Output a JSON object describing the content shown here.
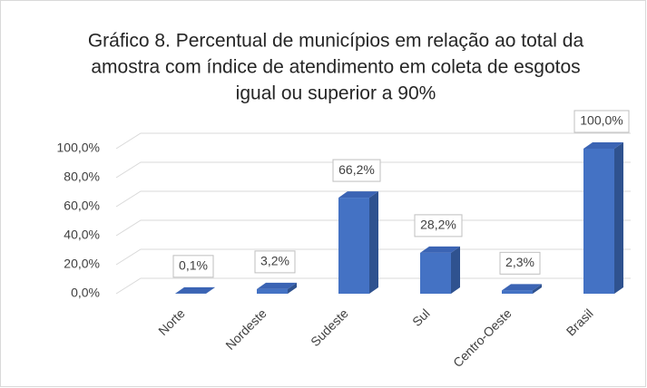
{
  "chart_data": {
    "type": "bar3d",
    "title": [
      "Gráfico 8. Percentual de municípios em relação ao total da",
      "amostra com índice de atendimento em coleta de esgotos",
      "igual ou superior a 90%"
    ],
    "categories": [
      "Norte",
      "Nordeste",
      "Sudeste",
      "Sul",
      "Centro-Oeste",
      "Brasil"
    ],
    "values": [
      0.1,
      3.2,
      66.2,
      28.2,
      2.3,
      100.0
    ],
    "value_labels": [
      "0,1%",
      "3,2%",
      "66,2%",
      "28,2%",
      "2,3%",
      "100,0%"
    ],
    "color": "#4472c4",
    "ylim": [
      0,
      100
    ],
    "yticks": [
      {
        "value": 0,
        "label": "0,0%"
      },
      {
        "value": 20,
        "label": "20,0%"
      },
      {
        "value": 40,
        "label": "40,0%"
      },
      {
        "value": 60,
        "label": "60,0%"
      },
      {
        "value": 80,
        "label": "80,0%"
      },
      {
        "value": 100,
        "label": "100,0%"
      }
    ],
    "grid": true
  }
}
